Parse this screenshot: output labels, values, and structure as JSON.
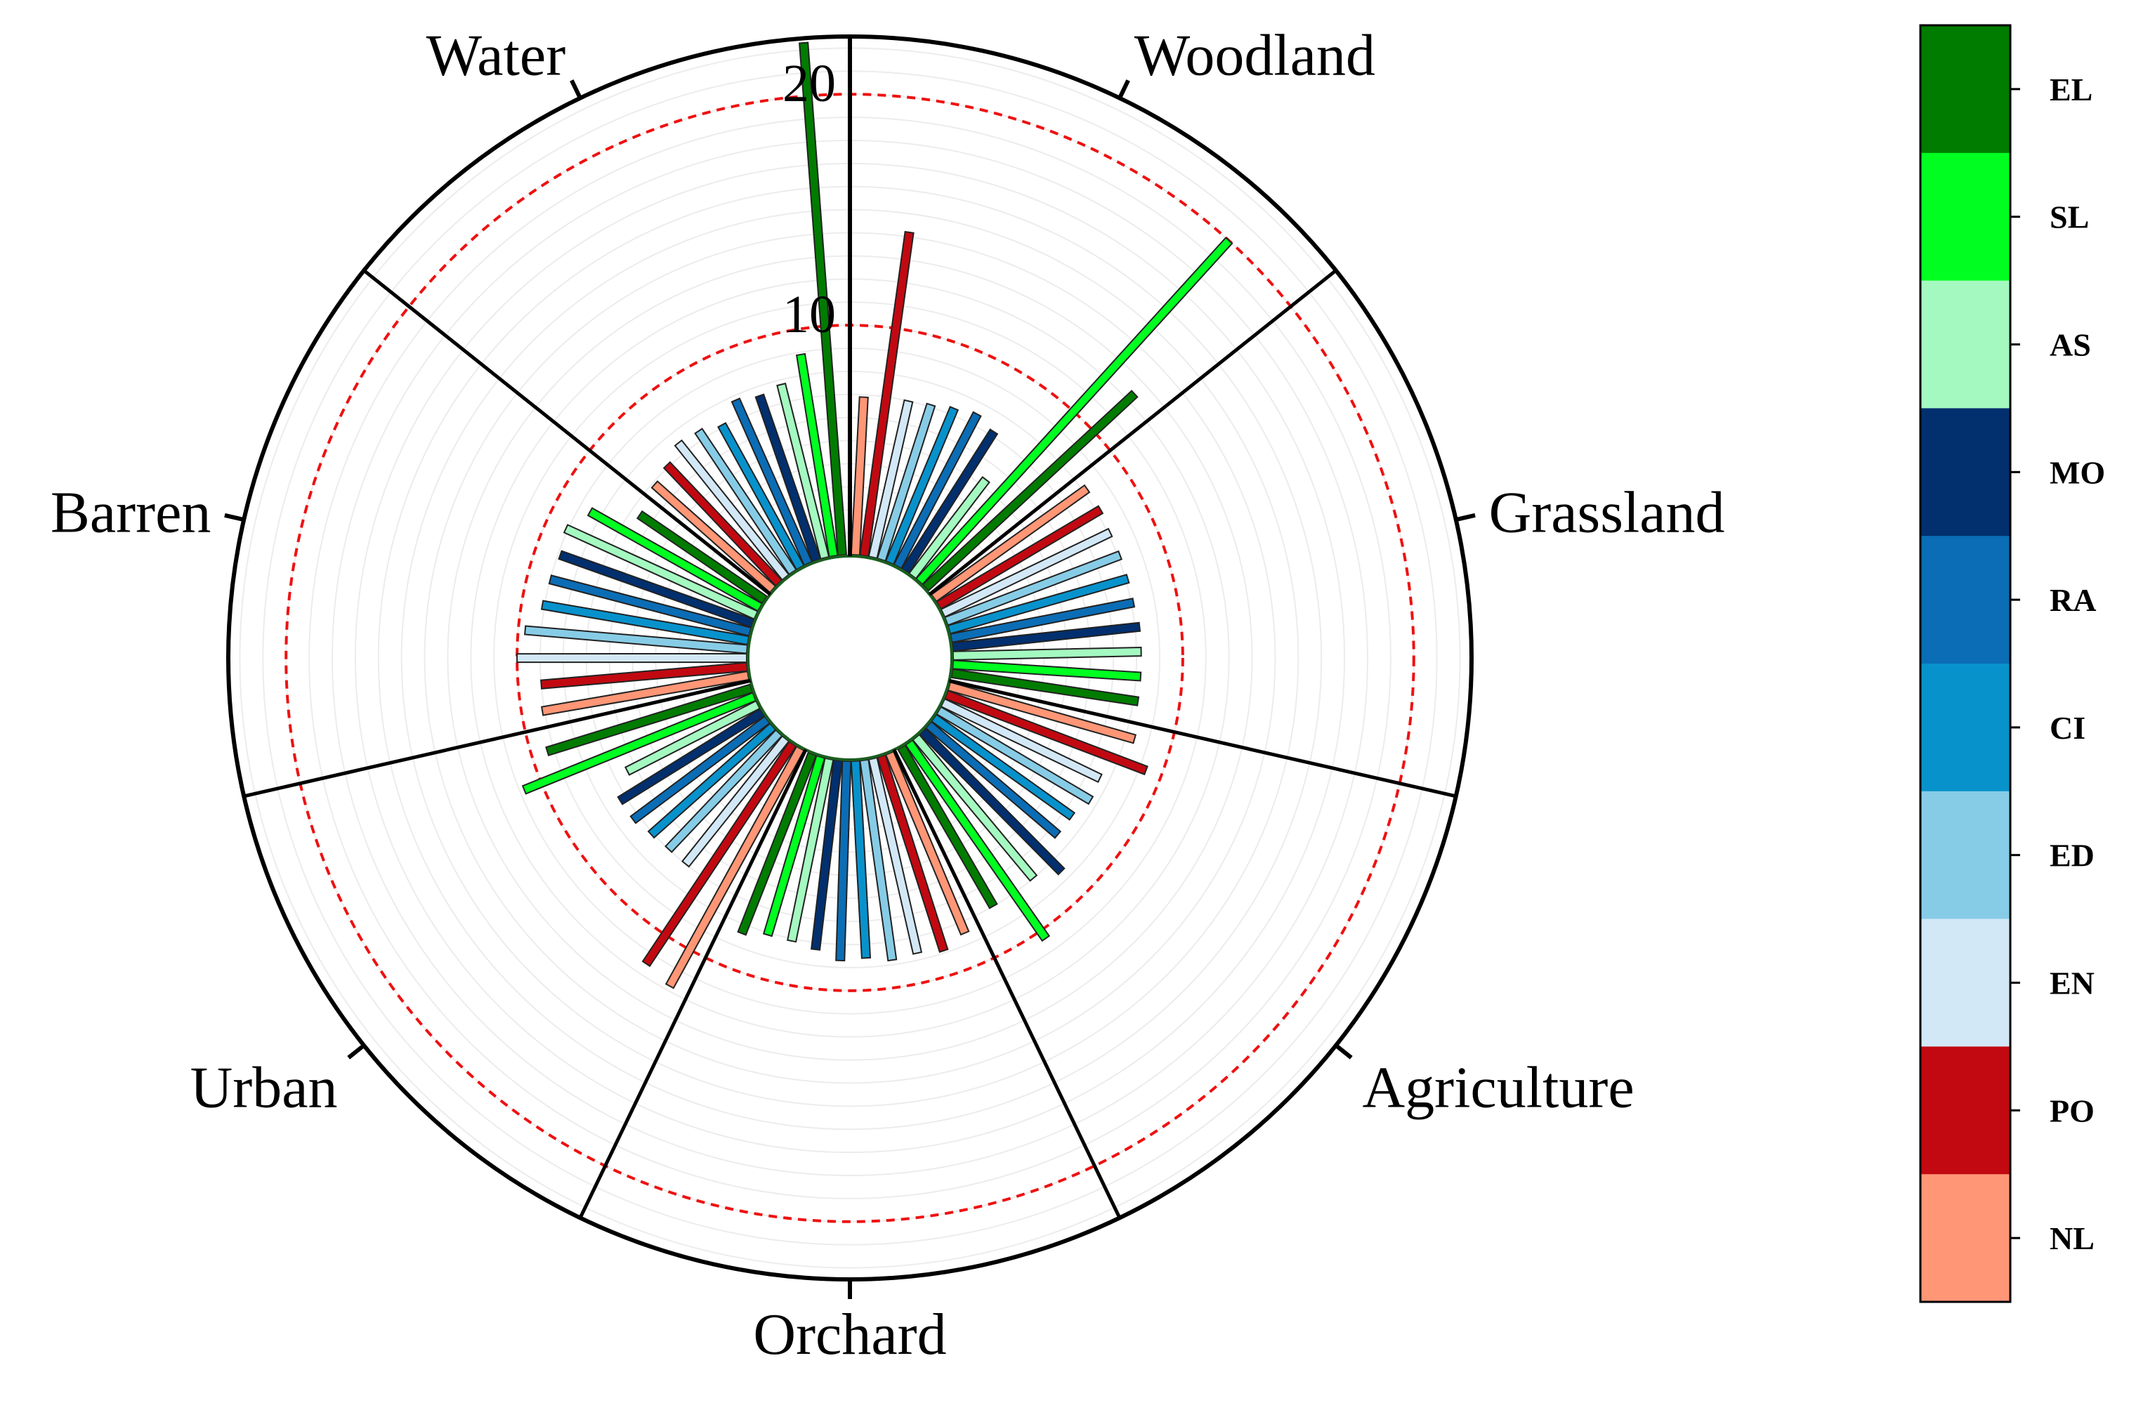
{
  "chart_data": {
    "type": "bar",
    "subtype": "radial-grouped-bar",
    "title": "",
    "categories": [
      "Woodland",
      "Grassland",
      "Agriculture",
      "Orchard",
      "Urban",
      "Barren",
      "Water"
    ],
    "series_names": [
      "NL",
      "PO",
      "EN",
      "ED",
      "CI",
      "RA",
      "MO",
      "AS",
      "SL",
      "EL"
    ],
    "legend": {
      "order": [
        "EL",
        "SL",
        "AS",
        "MO",
        "RA",
        "CI",
        "ED",
        "EN",
        "PO",
        "NL"
      ],
      "placement": "right"
    },
    "colors": {
      "EL": "#007c00",
      "SL": "#00ff21",
      "AS": "#a4f9c0",
      "MO": "#022f6e",
      "RA": "#0b6db5",
      "CI": "#0892cc",
      "ED": "#87cce6",
      "EN": "#d3e8f6",
      "PO": "#c20911",
      "NL": "#ff9676"
    },
    "series": [
      {
        "name": "NL",
        "values": [
          6.9,
          8.2,
          8.4,
          8.5,
          11.8,
          9.1,
          6.9
        ]
      },
      {
        "name": "PO",
        "values": [
          14.2,
          8.2,
          9.3,
          8.9,
          11.5,
          9.0,
          7.1
        ]
      },
      {
        "name": "EN",
        "values": [
          7.0,
          8.1,
          7.6,
          8.7,
          7.0,
          10.0,
          7.5
        ]
      },
      {
        "name": "ED",
        "values": [
          7.1,
          8.1,
          7.7,
          8.8,
          7.0,
          9.7,
          7.4
        ]
      },
      {
        "name": "CI",
        "values": [
          7.3,
          8.1,
          7.4,
          8.6,
          7.1,
          9.1,
          7.1
        ]
      },
      {
        "name": "RA",
        "values": [
          7.5,
          8.1,
          7.4,
          8.7,
          7.3,
          9.0,
          7.8
        ]
      },
      {
        "name": "MO",
        "values": [
          7.2,
          8.2,
          8.6,
          8.3,
          7.3,
          8.9,
          7.6
        ]
      },
      {
        "name": "AS",
        "values": [
          5.3,
          8.2,
          8.0,
          8.1,
          6.4,
          9.1,
          7.8
        ]
      },
      {
        "name": "SL",
        "values": [
          20.0,
          8.2,
          10.4,
          8.1,
          10.8,
          8.5,
          8.9
        ]
      },
      {
        "name": "EL",
        "values": [
          12.4,
          8.2,
          8.0,
          8.4,
          9.3,
          6.6,
          22.3
        ]
      }
    ],
    "radial_axis": {
      "range": [
        0,
        22.5
      ],
      "ticks": [
        10,
        20
      ],
      "reference_circles": [
        10,
        20
      ],
      "reference_style": "red dashed",
      "minor_gridlines": true
    }
  }
}
